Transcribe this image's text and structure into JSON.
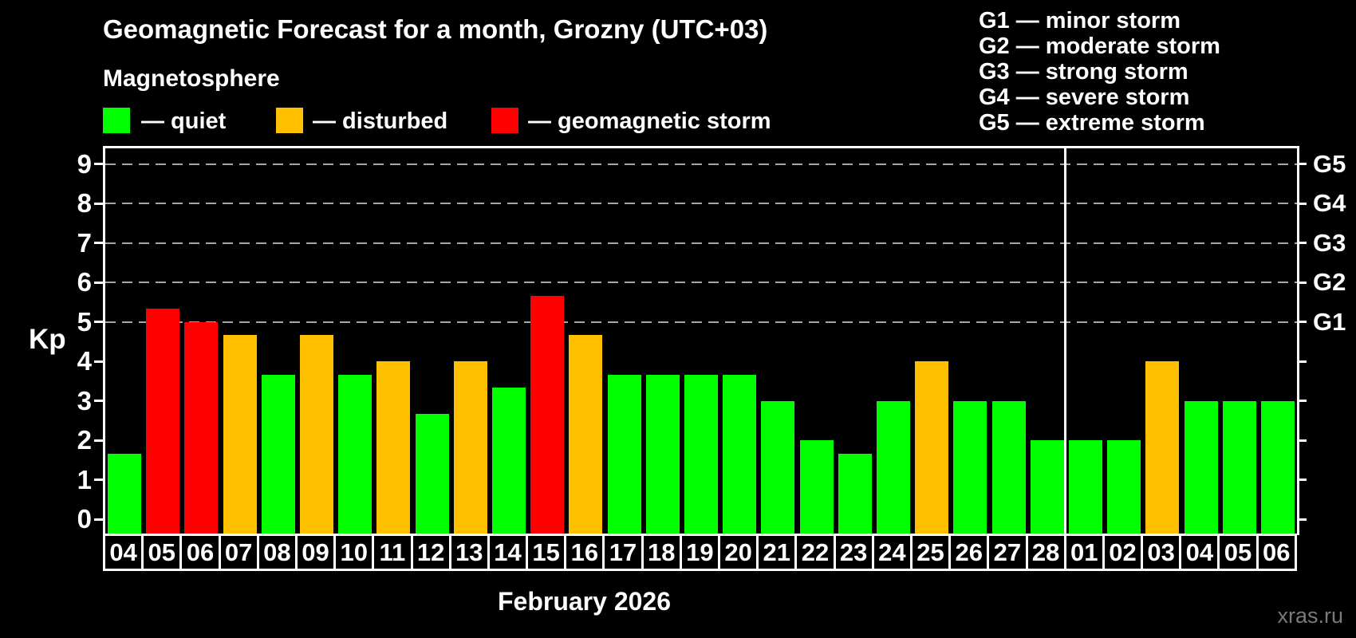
{
  "header": {
    "title": "Geomagnetic Forecast for a month, Grozny (UTC+03)",
    "subtitle": "Magnetosphere"
  },
  "legend": {
    "items": [
      {
        "key": "quiet",
        "label": "— quiet",
        "color": "#00ff00"
      },
      {
        "key": "disturbed",
        "label": "— disturbed",
        "color": "#ffc000"
      },
      {
        "key": "storm",
        "label": "— geomagnetic storm",
        "color": "#ff0000"
      }
    ]
  },
  "g_scale_legend": {
    "items": [
      "G1 — minor storm",
      "G2 — moderate storm",
      "G3 — strong storm",
      "G4 — severe storm",
      "G5 — extreme storm"
    ]
  },
  "watermark": "xras.ru",
  "chart_data": {
    "type": "bar",
    "title": "Geomagnetic Forecast for a month, Grozny (UTC+03)",
    "xlabel": "February 2026",
    "ylabel": "Kp",
    "ylim": [
      -0.4,
      9.4
    ],
    "yticks": [
      0,
      1,
      2,
      3,
      4,
      5,
      6,
      7,
      8,
      9
    ],
    "gridlines": [
      5,
      6,
      7,
      8,
      9
    ],
    "grid_style": "dashed",
    "legend_position": "top",
    "right_axis": [
      {
        "value": 5,
        "label": "G1"
      },
      {
        "value": 6,
        "label": "G2"
      },
      {
        "value": 7,
        "label": "G3"
      },
      {
        "value": 8,
        "label": "G4"
      },
      {
        "value": 9,
        "label": "G5"
      }
    ],
    "month_separator_after_index": 24,
    "categories": [
      "04",
      "05",
      "06",
      "07",
      "08",
      "09",
      "10",
      "11",
      "12",
      "13",
      "14",
      "15",
      "16",
      "17",
      "18",
      "19",
      "20",
      "21",
      "22",
      "23",
      "24",
      "25",
      "26",
      "27",
      "28",
      "01",
      "02",
      "03",
      "04",
      "05",
      "06"
    ],
    "values": [
      1.67,
      5.33,
      5.0,
      4.67,
      3.67,
      4.67,
      3.67,
      4.0,
      2.67,
      4.0,
      3.33,
      5.67,
      4.67,
      3.67,
      3.67,
      3.67,
      3.67,
      3.0,
      2.0,
      1.67,
      3.0,
      4.0,
      3.0,
      3.0,
      2.0,
      2.0,
      2.0,
      4.0,
      3.0,
      3.0,
      3.0
    ],
    "statuses": [
      "quiet",
      "storm",
      "storm",
      "disturbed",
      "quiet",
      "disturbed",
      "quiet",
      "disturbed",
      "quiet",
      "disturbed",
      "quiet",
      "storm",
      "disturbed",
      "quiet",
      "quiet",
      "quiet",
      "quiet",
      "quiet",
      "quiet",
      "quiet",
      "quiet",
      "disturbed",
      "quiet",
      "quiet",
      "quiet",
      "quiet",
      "quiet",
      "disturbed",
      "quiet",
      "quiet",
      "quiet"
    ],
    "colors": {
      "quiet": "#00ff00",
      "disturbed": "#ffc000",
      "storm": "#ff0000"
    }
  }
}
